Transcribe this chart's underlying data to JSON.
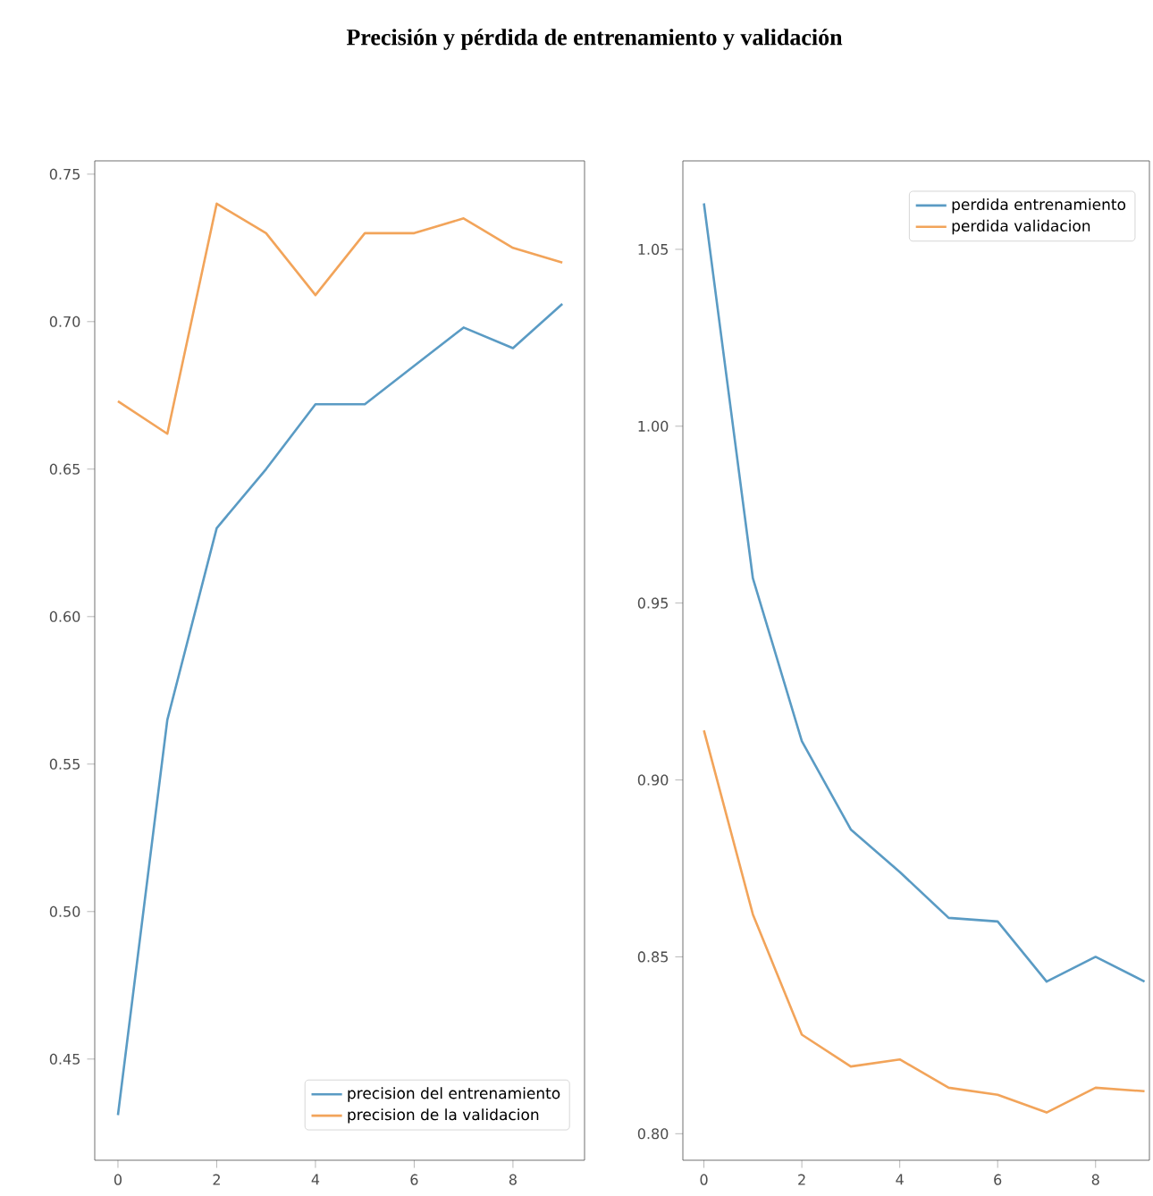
{
  "chart_data": [
    {
      "type": "line",
      "title": "Precisión y pérdida de entrenamiento y validación",
      "x": [
        0,
        1,
        2,
        3,
        4,
        5,
        6,
        7,
        8,
        9
      ],
      "xlim": [
        -0.47,
        9.45
      ],
      "xticks": [
        0,
        2,
        4,
        6,
        8
      ],
      "ylim": [
        0.4157,
        0.7545
      ],
      "yticks": [
        {
          "value": 0.45,
          "label": "0.45"
        },
        {
          "value": 0.5,
          "label": "0.50"
        },
        {
          "value": 0.55,
          "label": "0.55"
        },
        {
          "value": 0.6,
          "label": "0.60"
        },
        {
          "value": 0.65,
          "label": "0.65"
        },
        {
          "value": 0.7,
          "label": "0.70"
        },
        {
          "value": 0.75,
          "label": "0.75"
        }
      ],
      "legend": "bottom right",
      "series": [
        {
          "name": "precision del entrenamiento",
          "color": "#5a9bc4",
          "values": [
            0.431,
            0.565,
            0.63,
            0.65,
            0.672,
            0.672,
            0.685,
            0.698,
            0.691,
            0.706
          ]
        },
        {
          "name": "precision de la validacion",
          "color": "#f2a45a",
          "values": [
            0.673,
            0.662,
            0.74,
            0.73,
            0.709,
            0.73,
            0.73,
            0.735,
            0.725,
            0.72
          ]
        }
      ]
    },
    {
      "type": "line",
      "x": [
        0,
        1,
        2,
        3,
        4,
        5,
        6,
        7,
        8,
        9
      ],
      "xlim": [
        -0.43,
        9.1
      ],
      "xticks": [
        0,
        2,
        4,
        6,
        8
      ],
      "ylim": [
        0.7925,
        1.075
      ],
      "yticks": [
        {
          "value": 0.8,
          "label": "0.80"
        },
        {
          "value": 0.85,
          "label": "0.85"
        },
        {
          "value": 0.9,
          "label": "0.90"
        },
        {
          "value": 0.95,
          "label": "0.95"
        },
        {
          "value": 1.0,
          "label": "1.00"
        },
        {
          "value": 1.05,
          "label": "1.05"
        }
      ],
      "legend": "top right",
      "series": [
        {
          "name": "perdida entrenamiento",
          "color": "#5a9bc4",
          "values": [
            1.063,
            0.957,
            0.911,
            0.886,
            0.874,
            0.861,
            0.86,
            0.843,
            0.85,
            0.843
          ]
        },
        {
          "name": "perdida validacion",
          "color": "#f2a45a",
          "values": [
            0.914,
            0.862,
            0.828,
            0.819,
            0.821,
            0.813,
            0.811,
            0.806,
            0.813,
            0.812
          ]
        }
      ]
    }
  ]
}
